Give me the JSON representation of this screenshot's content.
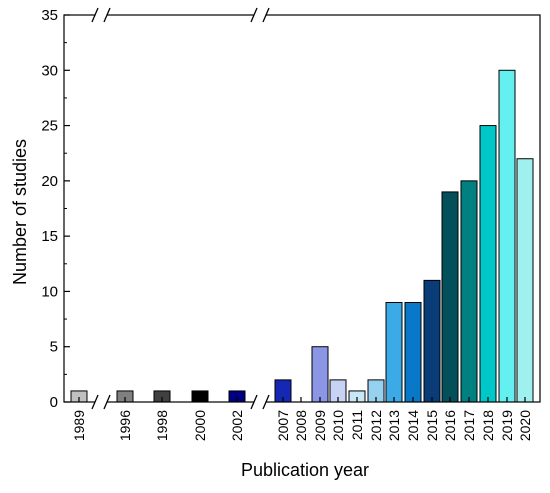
{
  "chart_data": {
    "type": "bar",
    "xlabel": "Publication year",
    "ylabel": "Number of studies",
    "ylim": [
      0,
      35
    ],
    "yticks": [
      "0",
      "5",
      "10",
      "15",
      "20",
      "25",
      "30",
      "35"
    ],
    "axis_breaks": [
      "between 1989 and 1996",
      "between 2002 and 2007"
    ],
    "categories": [
      "1989",
      "1996",
      "1998",
      "2000",
      "2002",
      "2007",
      "2008",
      "2009",
      "2010",
      "2011",
      "2012",
      "2013",
      "2014",
      "2015",
      "2016",
      "2017",
      "2018",
      "2019",
      "2020"
    ],
    "values": [
      1,
      1,
      1,
      1,
      1,
      2,
      0,
      5,
      2,
      1,
      2,
      9,
      9,
      11,
      19,
      20,
      25,
      30,
      22
    ],
    "colors": [
      "#c0c0c0",
      "#808080",
      "#404040",
      "#000000",
      "#000080",
      "#1428b4",
      "#1428b4",
      "#8c96e6",
      "#c8d2f5",
      "#c8e6f5",
      "#96d2f0",
      "#3caae6",
      "#0a78c8",
      "#0a3c78",
      "#04505a",
      "#008080",
      "#00c8c8",
      "#64f0f0",
      "#a0f0f0"
    ],
    "grid": false,
    "legend": "none"
  }
}
